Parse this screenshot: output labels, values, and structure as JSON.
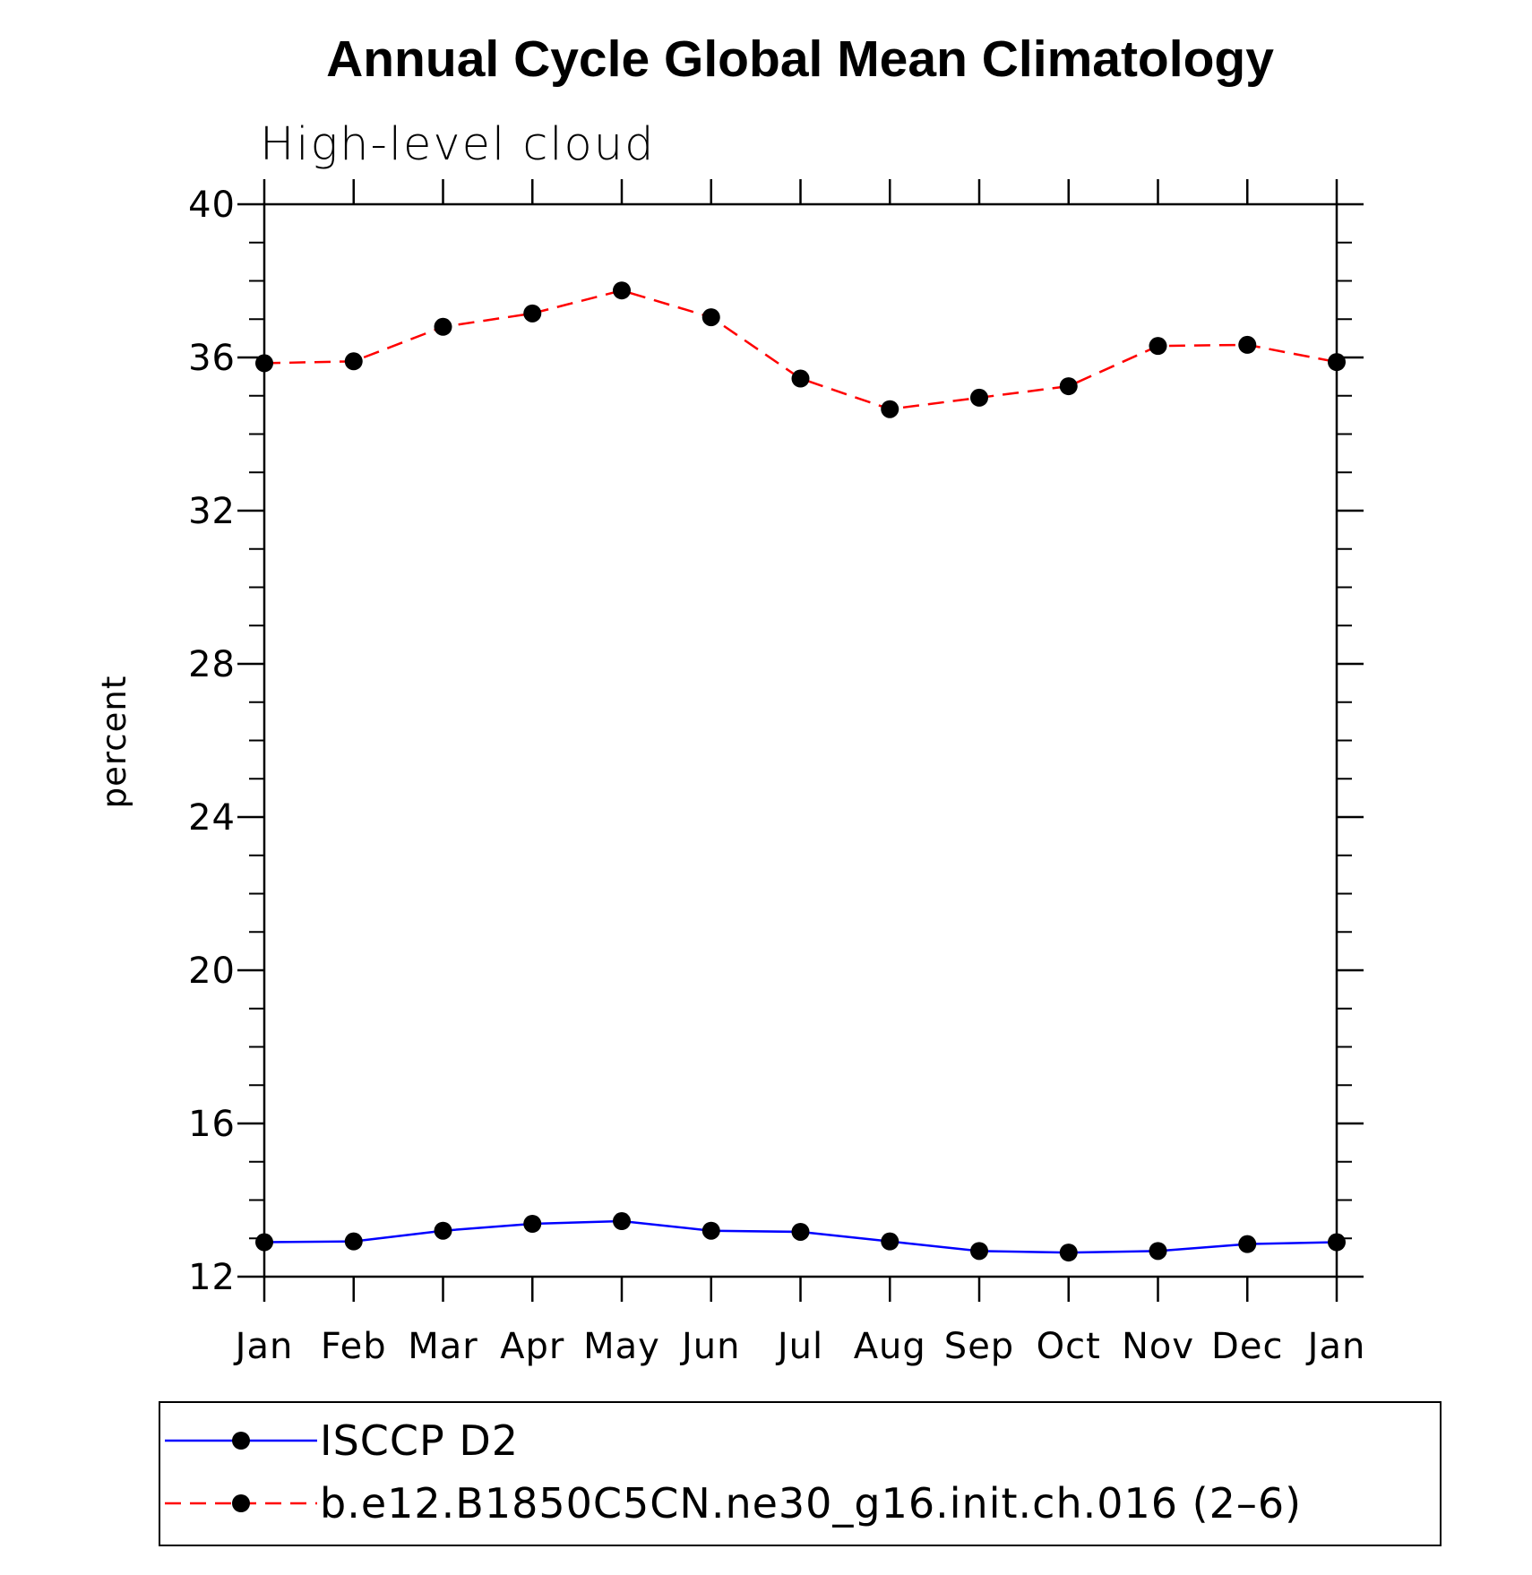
{
  "chart_data": {
    "type": "line",
    "title": "Annual Cycle Global Mean Climatology",
    "subtitle": "High-level cloud",
    "xlabel": "",
    "ylabel": "percent",
    "categories": [
      "Jan",
      "Feb",
      "Mar",
      "Apr",
      "May",
      "Jun",
      "Jul",
      "Aug",
      "Sep",
      "Oct",
      "Nov",
      "Dec",
      "Jan"
    ],
    "ylim": [
      12,
      40
    ],
    "yticks": [
      12,
      16,
      20,
      24,
      28,
      32,
      36,
      40
    ],
    "series": [
      {
        "name": "ISCCP D2",
        "color": "#0000ff",
        "dash": "solid",
        "marker": "filled-circle",
        "values": [
          12.9,
          12.92,
          13.2,
          13.38,
          13.45,
          13.2,
          13.17,
          12.92,
          12.67,
          12.63,
          12.67,
          12.85,
          12.9
        ]
      },
      {
        "name": "b.e12.B1850C5CN.ne30_g16.init.ch.016 (2–6)",
        "color": "#ff0000",
        "dash": "dashed",
        "marker": "filled-circle",
        "values": [
          35.85,
          35.9,
          36.8,
          37.15,
          37.75,
          37.05,
          35.45,
          34.65,
          34.95,
          35.25,
          36.3,
          36.33,
          35.88
        ]
      }
    ],
    "legend": "bottom"
  }
}
